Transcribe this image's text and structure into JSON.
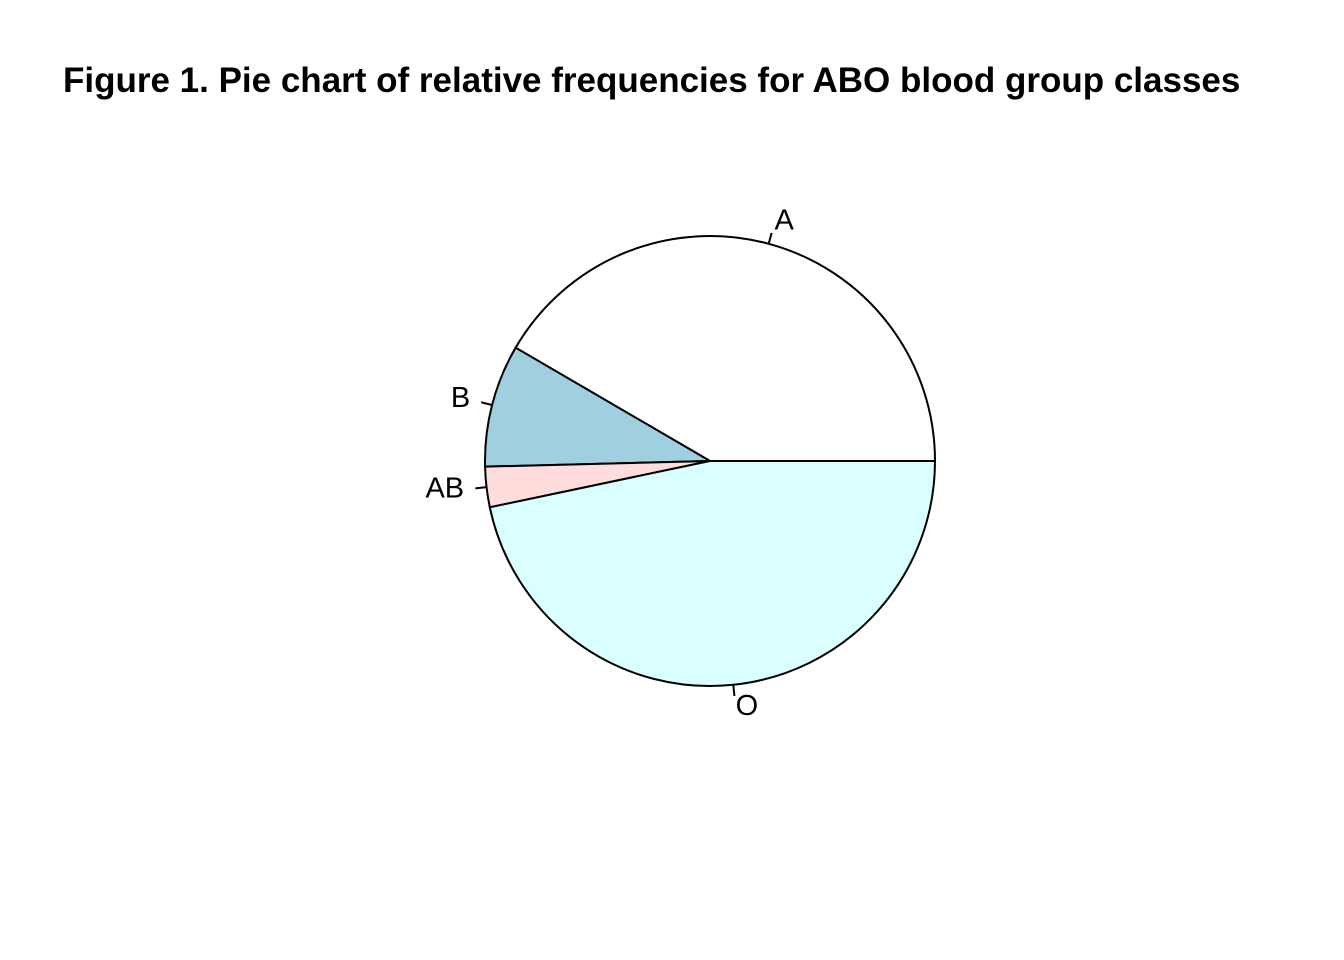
{
  "chart_data": {
    "type": "pie",
    "title": "Figure 1. Pie chart of relative frequencies for ABO blood group classes",
    "categories": [
      "A",
      "B",
      "AB",
      "O"
    ],
    "values": [
      0.416,
      0.088,
      0.029,
      0.467
    ],
    "colors": [
      "#ffffff",
      "#a0cfe0",
      "#ffdddd",
      "#d9ffff"
    ],
    "start_angle_deg": 0,
    "direction": "counterclockwise",
    "legend": "none"
  }
}
